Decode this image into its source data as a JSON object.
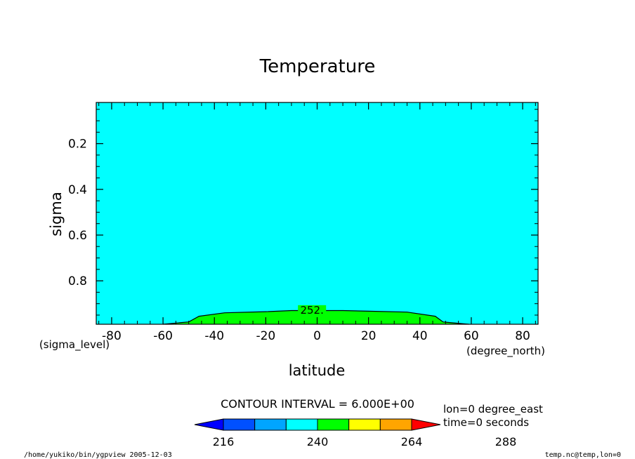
{
  "chart_data": {
    "type": "contour",
    "title": "Temperature",
    "xlabel": "latitude",
    "ylabel": "sigma",
    "x_units": "(degree_north)",
    "y_units": "(sigma_level)",
    "xlim": [
      -86,
      86
    ],
    "ylim": [
      0.02,
      0.99
    ],
    "y_inverted": true,
    "x_ticks": [
      -80,
      -60,
      -40,
      -20,
      0,
      20,
      40,
      60,
      80
    ],
    "y_ticks": [
      0.2,
      0.4,
      0.6,
      0.8
    ],
    "x_tick_labels": [
      "-80",
      "-60",
      "-40",
      "-20",
      "0",
      "20",
      "40",
      "60",
      "80"
    ],
    "y_tick_labels": [
      "0.2",
      "0.4",
      "0.6",
      "0.8"
    ],
    "background_fill": "#00ffff",
    "region_fill": "#00ff00",
    "contour_252_boundary": [
      {
        "lat": -60,
        "sigma": 0.99
      },
      {
        "lat": -50,
        "sigma": 0.98
      },
      {
        "lat": -46,
        "sigma": 0.955
      },
      {
        "lat": -36,
        "sigma": 0.94
      },
      {
        "lat": -20,
        "sigma": 0.935
      },
      {
        "lat": -10,
        "sigma": 0.93
      },
      {
        "lat": 0,
        "sigma": 0.93
      },
      {
        "lat": 10,
        "sigma": 0.93
      },
      {
        "lat": 20,
        "sigma": 0.933
      },
      {
        "lat": 35,
        "sigma": 0.937
      },
      {
        "lat": 46,
        "sigma": 0.955
      },
      {
        "lat": 49,
        "sigma": 0.98
      },
      {
        "lat": 59,
        "sigma": 0.99
      }
    ],
    "contour_label": {
      "text": "252.",
      "lat": -2,
      "sigma": 0.925
    },
    "contour_interval_text": "CONTOUR INTERVAL = 6.000E+00",
    "colorbar": {
      "colors": [
        "#0000ff",
        "#0050ff",
        "#00a5ff",
        "#00ffff",
        "#00ff00",
        "#ffff00",
        "#ffa500",
        "#ff0000"
      ],
      "tick_labels": [
        "216",
        "240",
        "264",
        "288"
      ]
    },
    "info_lines": [
      "lon=0 degree_east",
      "time=0 seconds"
    ]
  },
  "footer_left": "/home/yukiko/bin/ygpview   2005-12-03",
  "footer_right": "temp.nc@temp,lon=0"
}
